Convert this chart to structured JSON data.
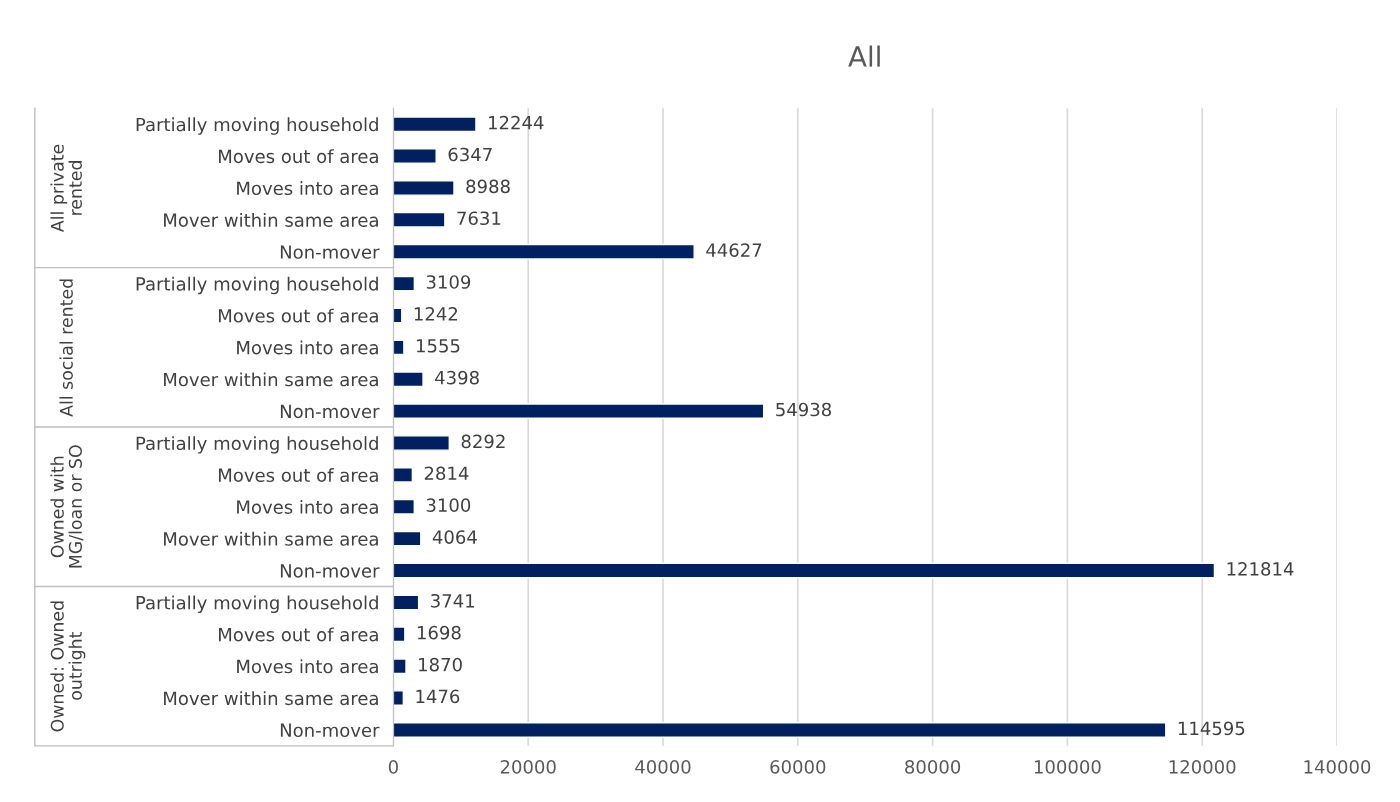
{
  "chart_data": {
    "type": "bar",
    "orientation": "horizontal",
    "title": "All",
    "categories": [
      "Partially moving household",
      "Moves out of area",
      "Moves into area",
      "Mover within same area",
      "Non-mover",
      "Partially moving household",
      "Moves out of area",
      "Moves into area",
      "Mover within same area",
      "Non-mover",
      "Partially moving household",
      "Moves out of area",
      "Moves into area",
      "Mover within same area",
      "Non-mover",
      "Partially moving household",
      "Moves out of area",
      "Moves into area",
      "Mover within same area",
      "Non-mover"
    ],
    "values": [
      12244,
      6347,
      8988,
      7631,
      44627,
      3109,
      1242,
      1555,
      4398,
      54938,
      8292,
      2814,
      3100,
      4064,
      121814,
      3741,
      1698,
      1870,
      1476,
      114595
    ],
    "color": "#002060",
    "annotations": [
      "All private\nrented",
      "All social rented",
      "Owned with\nMG/loan or SO",
      "Owned: Owned\noutright"
    ],
    "xlim": [
      0,
      140000
    ],
    "xticks": [
      0,
      20000,
      40000,
      60000,
      80000,
      100000,
      120000,
      140000
    ],
    "grid": "x",
    "data_labels": true
  }
}
